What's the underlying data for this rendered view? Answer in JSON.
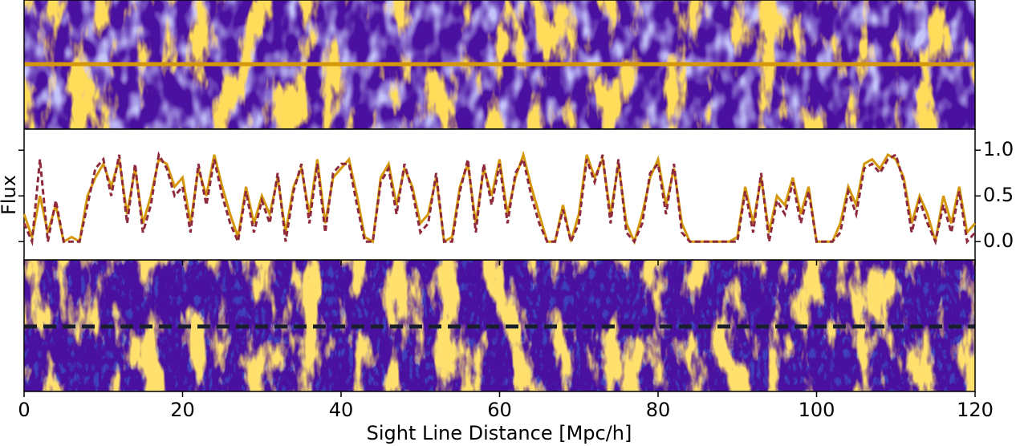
{
  "chart_data": {
    "type": "line",
    "xlabel": "Sight Line Distance [Mpc/h]",
    "ylabel": "Flux",
    "x": [
      0,
      1,
      2,
      3,
      4,
      5,
      6,
      7,
      8,
      9,
      10,
      11,
      12,
      13,
      14,
      15,
      16,
      17,
      18,
      19,
      20,
      21,
      22,
      23,
      24,
      25,
      26,
      27,
      28,
      29,
      30,
      31,
      32,
      33,
      34,
      35,
      36,
      37,
      38,
      39,
      40,
      41,
      42,
      43,
      44,
      45,
      46,
      47,
      48,
      49,
      50,
      51,
      52,
      53,
      54,
      55,
      56,
      57,
      58,
      59,
      60,
      61,
      62,
      63,
      64,
      65,
      66,
      67,
      68,
      69,
      70,
      71,
      72,
      73,
      74,
      75,
      76,
      77,
      78,
      79,
      80,
      81,
      82,
      83,
      84,
      85,
      86,
      87,
      88,
      89,
      90,
      91,
      92,
      93,
      94,
      95,
      96,
      97,
      98,
      99,
      100,
      101,
      102,
      103,
      104,
      105,
      106,
      107,
      108,
      109,
      110,
      111,
      112,
      113,
      114,
      115,
      116,
      117,
      118,
      119,
      120
    ],
    "series": [
      {
        "color": "#d4980a",
        "linestyle": "solid",
        "values": [
          0.3,
          0.05,
          0.5,
          0.1,
          0.4,
          0.0,
          0.05,
          0.0,
          0.5,
          0.7,
          0.85,
          0.6,
          0.9,
          0.3,
          0.8,
          0.2,
          0.5,
          0.9,
          0.85,
          0.6,
          0.7,
          0.2,
          0.8,
          0.5,
          0.95,
          0.6,
          0.3,
          0.05,
          0.6,
          0.2,
          0.5,
          0.3,
          0.7,
          0.1,
          0.6,
          0.8,
          0.3,
          0.9,
          0.2,
          0.7,
          0.8,
          0.9,
          0.5,
          0.05,
          0.0,
          0.7,
          0.85,
          0.4,
          0.8,
          0.6,
          0.2,
          0.3,
          0.7,
          0.0,
          0.05,
          0.6,
          0.85,
          0.2,
          0.8,
          0.5,
          0.9,
          0.3,
          0.7,
          0.95,
          0.6,
          0.3,
          0.0,
          0.0,
          0.4,
          0.0,
          0.3,
          0.95,
          0.7,
          0.9,
          0.3,
          0.85,
          0.2,
          0.0,
          0.3,
          0.7,
          0.9,
          0.4,
          0.8,
          0.2,
          0.0,
          0.0,
          0.0,
          0.0,
          0.0,
          0.0,
          0.05,
          0.6,
          0.2,
          0.7,
          0.1,
          0.5,
          0.4,
          0.7,
          0.3,
          0.6,
          0.0,
          0.0,
          0.0,
          0.2,
          0.6,
          0.4,
          0.85,
          0.9,
          0.8,
          0.95,
          0.9,
          0.7,
          0.2,
          0.5,
          0.3,
          0.0,
          0.5,
          0.2,
          0.6,
          0.1,
          0.2
        ]
      },
      {
        "color": "#8e2a3c",
        "linestyle": "dashed",
        "values": [
          0.2,
          0.0,
          0.9,
          0.0,
          0.45,
          0.0,
          0.0,
          0.0,
          0.4,
          0.8,
          0.9,
          0.5,
          0.95,
          0.2,
          0.85,
          0.1,
          0.4,
          0.95,
          0.8,
          0.5,
          0.6,
          0.1,
          0.85,
          0.4,
          0.9,
          0.5,
          0.2,
          0.0,
          0.55,
          0.1,
          0.45,
          0.2,
          0.75,
          0.0,
          0.55,
          0.85,
          0.2,
          0.85,
          0.1,
          0.75,
          0.85,
          0.85,
          0.4,
          0.0,
          0.0,
          0.65,
          0.8,
          0.3,
          0.85,
          0.55,
          0.1,
          0.2,
          0.75,
          0.0,
          0.0,
          0.55,
          0.9,
          0.1,
          0.85,
          0.4,
          0.85,
          0.2,
          0.75,
          0.9,
          0.5,
          0.2,
          0.0,
          0.0,
          0.35,
          0.0,
          0.2,
          0.9,
          0.65,
          0.95,
          0.2,
          0.9,
          0.1,
          0.0,
          0.2,
          0.75,
          0.85,
          0.3,
          0.85,
          0.1,
          0.0,
          0.0,
          0.0,
          0.0,
          0.0,
          0.0,
          0.0,
          0.55,
          0.1,
          0.75,
          0.0,
          0.45,
          0.3,
          0.65,
          0.2,
          0.55,
          0.0,
          0.0,
          0.0,
          0.1,
          0.55,
          0.3,
          0.8,
          0.85,
          0.75,
          0.9,
          0.95,
          0.65,
          0.1,
          0.45,
          0.2,
          0.0,
          0.4,
          0.1,
          0.55,
          0.0,
          0.1
        ]
      }
    ],
    "xlim": [
      0,
      120
    ],
    "xticks": [
      0,
      20,
      40,
      60,
      80,
      100,
      120
    ],
    "ylim": [
      -0.2,
      1.23
    ],
    "yticks": [
      {
        "value": 0,
        "label": "0.0"
      },
      0.5,
      {
        "value": 1,
        "label": "1.0"
      }
    ]
  }
}
